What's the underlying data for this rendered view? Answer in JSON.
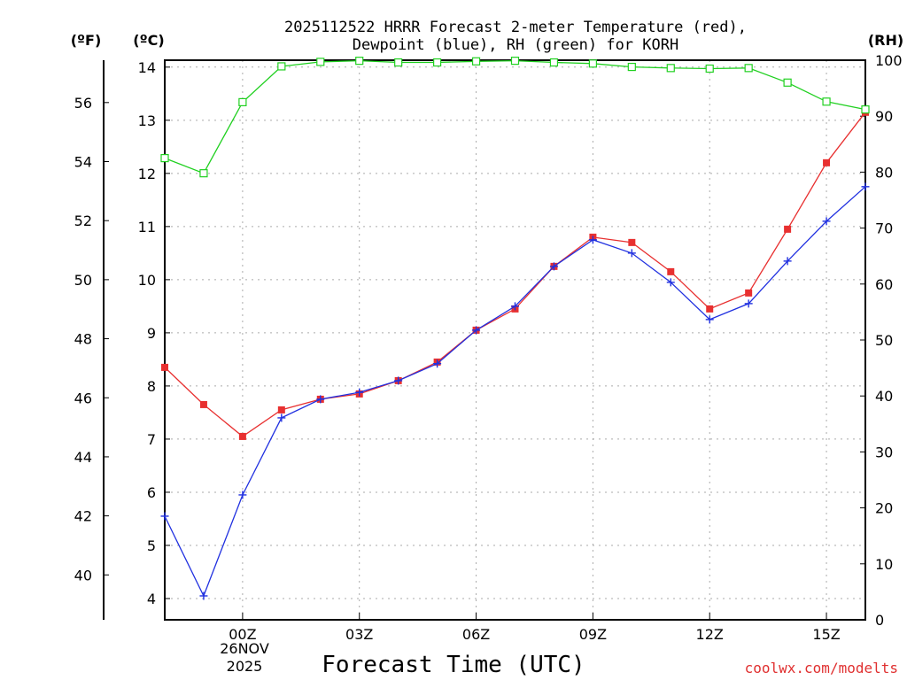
{
  "chart_data": {
    "type": "line",
    "title_line1": "2025112522 HRRR Forecast 2-meter Temperature (red),",
    "title_line2": "Dewpoint (blue), RH (green) for KORH",
    "xlabel": "Forecast Time (UTC)",
    "credit": "coolwx.com/modelts",
    "units": {
      "fahrenheit": "(ºF)",
      "celsius": "(ºC)",
      "rh": "(RH)"
    },
    "x_hours": [
      -2,
      -1,
      0,
      1,
      2,
      3,
      4,
      5,
      6,
      7,
      8,
      9,
      10,
      11,
      12,
      13,
      14,
      15,
      16
    ],
    "x_range": [
      -2,
      16
    ],
    "x_ticks": [
      {
        "hour": 0,
        "label": "00Z"
      },
      {
        "hour": 3,
        "label": "03Z"
      },
      {
        "hour": 6,
        "label": "06Z"
      },
      {
        "hour": 9,
        "label": "09Z"
      },
      {
        "hour": 12,
        "label": "12Z"
      },
      {
        "hour": 15,
        "label": "15Z"
      }
    ],
    "date_label_line1": "26NOV",
    "date_label_line2": "2025",
    "celsius_range": [
      3.6,
      14.13
    ],
    "celsius_ticks": [
      4,
      5,
      6,
      7,
      8,
      9,
      10,
      11,
      12,
      13,
      14
    ],
    "fahrenheit_ticks": [
      40,
      42,
      44,
      46,
      48,
      50,
      52,
      54,
      56
    ],
    "rh_range": [
      0,
      100
    ],
    "rh_ticks": [
      0,
      10,
      20,
      30,
      40,
      50,
      60,
      70,
      80,
      90,
      100
    ],
    "series": [
      {
        "name": "Temperature",
        "axis": "celsius",
        "color": "#e83030",
        "marker": "filled-square",
        "values": [
          8.35,
          7.65,
          7.05,
          7.55,
          7.75,
          7.85,
          8.1,
          8.45,
          9.05,
          9.45,
          10.25,
          10.8,
          10.7,
          10.15,
          9.45,
          9.75,
          10.95,
          12.2,
          13.15
        ]
      },
      {
        "name": "Dewpoint",
        "axis": "celsius",
        "color": "#2030e0",
        "marker": "plus",
        "values": [
          5.55,
          4.05,
          5.95,
          7.4,
          7.75,
          7.88,
          8.1,
          8.42,
          9.05,
          9.5,
          10.25,
          10.75,
          10.5,
          9.95,
          9.25,
          9.55,
          10.35,
          11.1,
          11.75
        ]
      },
      {
        "name": "Relative Humidity",
        "axis": "rh",
        "color": "#20d020",
        "marker": "open-square",
        "values": [
          82.5,
          79.8,
          92.5,
          98.9,
          99.7,
          99.9,
          99.6,
          99.6,
          99.8,
          99.9,
          99.6,
          99.4,
          98.8,
          98.6,
          98.5,
          98.6,
          96.0,
          92.6,
          91.2
        ]
      }
    ]
  }
}
